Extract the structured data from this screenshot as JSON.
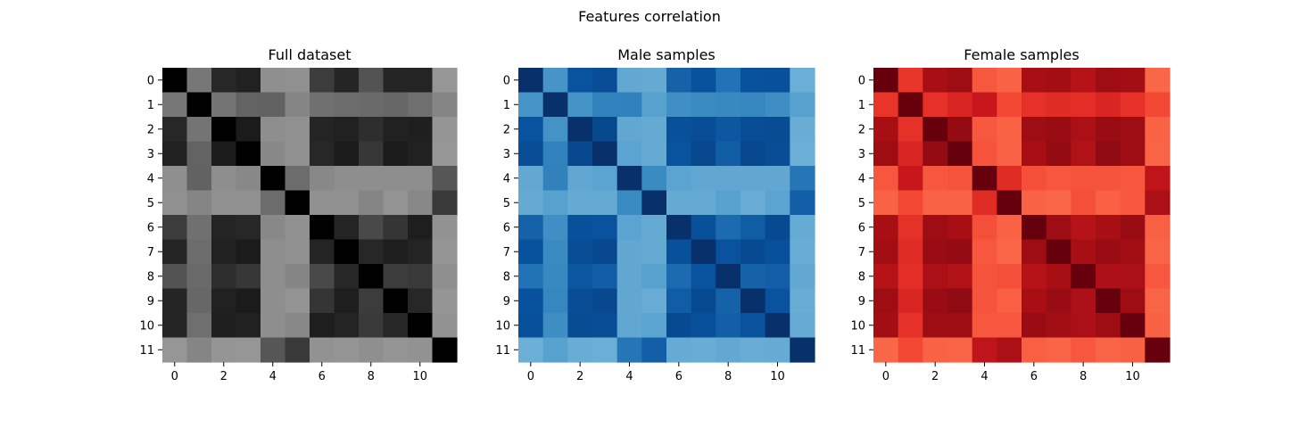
{
  "figure": {
    "title": "Features correlation"
  },
  "chart_data": [
    {
      "type": "heatmap",
      "title": "Full dataset",
      "colormap": "Greys",
      "value_range": [
        -1,
        1
      ],
      "x_tick_labels": [
        "0",
        "2",
        "4",
        "6",
        "8",
        "10"
      ],
      "y_tick_labels": [
        "0",
        "1",
        "2",
        "3",
        "4",
        "5",
        "6",
        "7",
        "8",
        "9",
        "10",
        "11"
      ],
      "matrix": [
        [
          1.0,
          0.22,
          0.74,
          0.78,
          0.05,
          0.04,
          0.62,
          0.75,
          0.49,
          0.75,
          0.76,
          0.0
        ],
        [
          0.22,
          1.0,
          0.24,
          0.37,
          0.38,
          0.12,
          0.27,
          0.3,
          0.32,
          0.34,
          0.28,
          0.12
        ],
        [
          0.74,
          0.24,
          1.0,
          0.82,
          0.06,
          0.04,
          0.76,
          0.78,
          0.7,
          0.78,
          0.79,
          0.01
        ],
        [
          0.78,
          0.37,
          0.82,
          1.0,
          0.1,
          0.04,
          0.74,
          0.82,
          0.65,
          0.82,
          0.78,
          0.0
        ],
        [
          0.05,
          0.38,
          0.06,
          0.1,
          1.0,
          0.3,
          0.1,
          0.06,
          0.06,
          0.06,
          0.06,
          0.47
        ],
        [
          0.04,
          0.12,
          0.04,
          0.04,
          0.3,
          1.0,
          0.04,
          0.04,
          0.12,
          0.02,
          0.1,
          0.64
        ],
        [
          0.62,
          0.27,
          0.76,
          0.74,
          0.1,
          0.04,
          1.0,
          0.76,
          0.55,
          0.66,
          0.8,
          0.03
        ],
        [
          0.75,
          0.3,
          0.78,
          0.82,
          0.06,
          0.04,
          0.76,
          1.0,
          0.74,
          0.8,
          0.76,
          0.01
        ],
        [
          0.49,
          0.32,
          0.7,
          0.65,
          0.06,
          0.12,
          0.55,
          0.74,
          1.0,
          0.62,
          0.64,
          0.05
        ],
        [
          0.75,
          0.34,
          0.78,
          0.82,
          0.06,
          0.02,
          0.66,
          0.8,
          0.62,
          1.0,
          0.74,
          0.01
        ],
        [
          0.76,
          0.28,
          0.79,
          0.78,
          0.06,
          0.1,
          0.8,
          0.76,
          0.64,
          0.74,
          1.0,
          0.03
        ],
        [
          0.0,
          0.12,
          0.01,
          0.0,
          0.47,
          0.64,
          0.03,
          0.01,
          0.05,
          0.01,
          0.03,
          1.0
        ]
      ]
    },
    {
      "type": "heatmap",
      "title": "Male samples",
      "colormap": "Blues",
      "value_range": [
        -1,
        1
      ],
      "x_tick_labels": [
        "0",
        "2",
        "4",
        "6",
        "8",
        "10"
      ],
      "y_tick_labels": [
        "0",
        "1",
        "2",
        "3",
        "4",
        "5",
        "6",
        "7",
        "8",
        "9",
        "10",
        "11"
      ],
      "matrix": [
        [
          1.0,
          0.22,
          0.74,
          0.78,
          0.05,
          0.04,
          0.62,
          0.75,
          0.49,
          0.75,
          0.76,
          0.0
        ],
        [
          0.22,
          1.0,
          0.24,
          0.37,
          0.38,
          0.12,
          0.27,
          0.3,
          0.32,
          0.34,
          0.28,
          0.12
        ],
        [
          0.74,
          0.24,
          1.0,
          0.82,
          0.06,
          0.04,
          0.76,
          0.78,
          0.7,
          0.78,
          0.79,
          0.01
        ],
        [
          0.78,
          0.37,
          0.82,
          1.0,
          0.1,
          0.04,
          0.74,
          0.82,
          0.65,
          0.82,
          0.78,
          0.0
        ],
        [
          0.05,
          0.38,
          0.06,
          0.1,
          1.0,
          0.3,
          0.1,
          0.06,
          0.06,
          0.06,
          0.06,
          0.47
        ],
        [
          0.04,
          0.12,
          0.04,
          0.04,
          0.3,
          1.0,
          0.04,
          0.04,
          0.12,
          0.02,
          0.1,
          0.64
        ],
        [
          0.62,
          0.27,
          0.76,
          0.74,
          0.1,
          0.04,
          1.0,
          0.76,
          0.55,
          0.66,
          0.8,
          0.03
        ],
        [
          0.75,
          0.3,
          0.78,
          0.82,
          0.06,
          0.04,
          0.76,
          1.0,
          0.74,
          0.8,
          0.76,
          0.01
        ],
        [
          0.49,
          0.32,
          0.7,
          0.65,
          0.06,
          0.12,
          0.55,
          0.74,
          1.0,
          0.62,
          0.64,
          0.05
        ],
        [
          0.75,
          0.34,
          0.78,
          0.82,
          0.06,
          0.02,
          0.66,
          0.8,
          0.62,
          1.0,
          0.74,
          0.01
        ],
        [
          0.76,
          0.28,
          0.79,
          0.78,
          0.06,
          0.1,
          0.8,
          0.76,
          0.64,
          0.74,
          1.0,
          0.03
        ],
        [
          0.0,
          0.12,
          0.01,
          0.0,
          0.47,
          0.64,
          0.03,
          0.01,
          0.05,
          0.01,
          0.03,
          1.0
        ]
      ]
    },
    {
      "type": "heatmap",
      "title": "Female samples",
      "colormap": "Reds",
      "value_range": [
        -1,
        1
      ],
      "x_tick_labels": [
        "0",
        "2",
        "4",
        "6",
        "8",
        "10"
      ],
      "y_tick_labels": [
        "0",
        "1",
        "2",
        "3",
        "4",
        "5",
        "6",
        "7",
        "8",
        "9",
        "10",
        "11"
      ],
      "matrix": [
        [
          1.0,
          0.3,
          0.74,
          0.78,
          0.1,
          0.04,
          0.74,
          0.76,
          0.64,
          0.78,
          0.76,
          0.02
        ],
        [
          0.3,
          1.0,
          0.32,
          0.4,
          0.52,
          0.18,
          0.32,
          0.36,
          0.34,
          0.4,
          0.32,
          0.18
        ],
        [
          0.74,
          0.32,
          1.0,
          0.82,
          0.1,
          0.04,
          0.78,
          0.8,
          0.72,
          0.8,
          0.78,
          0.04
        ],
        [
          0.78,
          0.4,
          0.82,
          1.0,
          0.12,
          0.04,
          0.74,
          0.82,
          0.68,
          0.84,
          0.78,
          0.03
        ],
        [
          0.1,
          0.52,
          0.1,
          0.12,
          1.0,
          0.36,
          0.14,
          0.1,
          0.12,
          0.12,
          0.1,
          0.58
        ],
        [
          0.04,
          0.18,
          0.04,
          0.04,
          0.36,
          1.0,
          0.04,
          0.02,
          0.14,
          0.06,
          0.1,
          0.72
        ],
        [
          0.74,
          0.32,
          0.78,
          0.74,
          0.14,
          0.04,
          1.0,
          0.78,
          0.64,
          0.74,
          0.8,
          0.06
        ],
        [
          0.76,
          0.36,
          0.8,
          0.82,
          0.1,
          0.02,
          0.78,
          1.0,
          0.74,
          0.8,
          0.76,
          0.03
        ],
        [
          0.64,
          0.34,
          0.72,
          0.68,
          0.12,
          0.14,
          0.64,
          0.74,
          1.0,
          0.7,
          0.72,
          0.1
        ],
        [
          0.78,
          0.4,
          0.8,
          0.84,
          0.12,
          0.06,
          0.74,
          0.8,
          0.7,
          1.0,
          0.78,
          0.03
        ],
        [
          0.76,
          0.32,
          0.78,
          0.78,
          0.1,
          0.1,
          0.8,
          0.76,
          0.72,
          0.78,
          1.0,
          0.05
        ],
        [
          0.02,
          0.18,
          0.04,
          0.03,
          0.58,
          0.72,
          0.06,
          0.03,
          0.1,
          0.03,
          0.05,
          1.0
        ]
      ]
    }
  ]
}
